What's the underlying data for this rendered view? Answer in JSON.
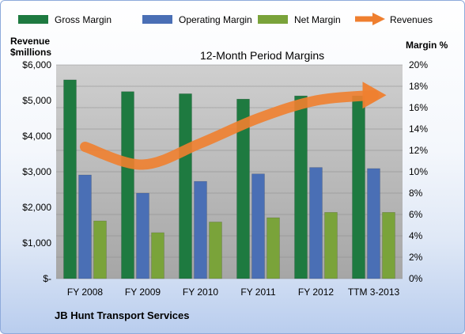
{
  "chart_data": {
    "type": "bar",
    "title": "12-Month Period Margins",
    "footer": "JB Hunt Transport Services",
    "categories": [
      "FY 2008",
      "FY 2009",
      "FY 2010",
      "FY 2011",
      "FY 2012",
      "TTM 3-2013"
    ],
    "y_left": {
      "label_line1": "Revenue",
      "label_line2": "$millions",
      "range": [
        0,
        6000
      ],
      "ticks": [
        "$-",
        "$1,000",
        "$2,000",
        "$3,000",
        "$4,000",
        "$5,000",
        "$6,000"
      ]
    },
    "y_right": {
      "label": "Margin %",
      "range": [
        0,
        20
      ],
      "ticks": [
        "0%",
        "2%",
        "4%",
        "6%",
        "8%",
        "10%",
        "12%",
        "14%",
        "16%",
        "18%",
        "20%"
      ]
    },
    "series": [
      {
        "name": "Gross Margin",
        "type": "bar",
        "axis": "right",
        "color": "#1e7a40",
        "values": [
          18.6,
          17.5,
          17.3,
          16.8,
          17.1,
          17.1
        ]
      },
      {
        "name": "Operating Margin",
        "type": "bar",
        "axis": "right",
        "color": "#4a6fb5",
        "values": [
          9.7,
          8.0,
          9.1,
          9.8,
          10.4,
          10.3
        ]
      },
      {
        "name": "Net Margin",
        "type": "bar",
        "axis": "right",
        "color": "#7aa33a",
        "values": [
          5.4,
          4.3,
          5.3,
          5.7,
          6.2,
          6.2
        ]
      },
      {
        "name": "Revenues",
        "type": "line",
        "axis": "left",
        "color": "#ef7f2f",
        "values": [
          3700,
          3200,
          3800,
          4500,
          5000,
          5150
        ]
      }
    ],
    "grid": true,
    "legend": "top"
  }
}
